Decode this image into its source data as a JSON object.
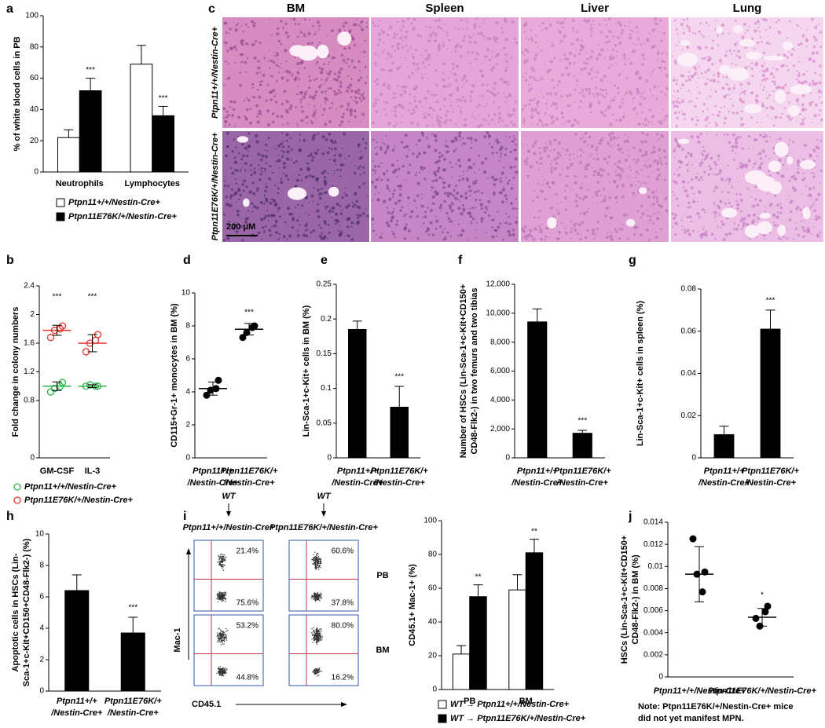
{
  "chart_data": [
    {
      "panel": "a",
      "type": "bar",
      "ylabel": "% of white blood cells in PB",
      "categories": [
        "Neutrophils",
        "Lymphocytes"
      ],
      "series": [
        {
          "name": "Ptpn11+/+/Nestin-Cre+",
          "color": "#ffffff",
          "values": [
            22,
            69
          ],
          "errors": [
            5,
            12
          ]
        },
        {
          "name": "Ptpn11E76K/+/Nestin-Cre+",
          "color": "#000000",
          "values": [
            52,
            36
          ],
          "errors": [
            8,
            6
          ]
        }
      ],
      "annotations": [
        "***",
        "***"
      ],
      "ylim": [
        0,
        100
      ],
      "yticks": [
        0,
        20,
        40,
        60,
        80,
        100
      ]
    },
    {
      "panel": "b",
      "type": "dotplot",
      "ylabel": "Fold change in colony numbers",
      "categories": [
        "GM-CSF",
        "IL-3"
      ],
      "series": [
        {
          "name": "Ptpn11+/+/Nestin-Cre+",
          "color": "#2db34a",
          "values": [
            [
              0.92,
              1.05,
              0.97,
              1.0
            ],
            [
              1.0,
              1.0,
              1.02,
              1.0
            ]
          ],
          "means": [
            1.0,
            1.0
          ],
          "errors": [
            0.06,
            0.02
          ]
        },
        {
          "name": "Ptpn11E76K/+/Nestin-Cre+",
          "color": "#e8332a",
          "values": [
            [
              1.68,
              1.84,
              1.78,
              1.8
            ],
            [
              1.48,
              1.72,
              1.6,
              1.64
            ]
          ],
          "means": [
            1.78,
            1.6
          ],
          "errors": [
            0.07,
            0.12
          ]
        }
      ],
      "annotations": [
        "***",
        "***"
      ],
      "ylim": [
        0,
        2.4
      ],
      "yticks": [
        0,
        0.8,
        1.2,
        1.6,
        2,
        2.4
      ]
    },
    {
      "panel": "d",
      "type": "dotplot",
      "ylabel": "CD115+Gr-1+ monocytes in BM (%)",
      "categories": [
        [
          "Ptpn11+/+",
          "/Nestin-Cre+"
        ],
        [
          "Ptpn11E76K/+",
          "/Nestin-Cre+"
        ]
      ],
      "color": "#000000",
      "groups": [
        {
          "values": [
            3.8,
            4.7,
            4.1,
            4.2
          ],
          "mean": 4.2,
          "error": 0.4
        },
        {
          "values": [
            7.3,
            8.0,
            7.6,
            7.9
          ],
          "mean": 7.8,
          "error": 0.35
        }
      ],
      "annotation": "***",
      "ylim": [
        0,
        10
      ],
      "yticks": [
        0,
        2,
        4,
        6,
        8,
        10
      ]
    },
    {
      "panel": "e",
      "type": "bar",
      "ylabel": "Lin-Sca-1+c-Kit+ cells in BM  (%)",
      "categories": [
        [
          "Ptpn11+/+",
          "/Nestin-Cre+"
        ],
        [
          "Ptpn11E76K/+",
          "/Nestin-Cre+"
        ]
      ],
      "color": "#000000",
      "values": [
        0.185,
        0.073
      ],
      "errors": [
        0.012,
        0.03
      ],
      "annotation": "***",
      "ylim": [
        0,
        0.25
      ],
      "yticks": [
        0,
        0.05,
        0.1,
        0.15,
        0.2,
        0.25
      ]
    },
    {
      "panel": "f",
      "type": "bar",
      "ylabel": [
        "Number of HSCs (Lin-Sca-1+c-Kit+CD150+",
        "CD48-Flk2-) in two femurs and two tibias"
      ],
      "categories": [
        [
          "Ptpn11+/+",
          "/Nestin-Cre+"
        ],
        [
          "Ptpn11E76K/+",
          "/Nestin-Cre+"
        ]
      ],
      "color": "#000000",
      "values": [
        9400,
        1700
      ],
      "errors": [
        900,
        200
      ],
      "annotation": "***",
      "ylim": [
        0,
        12000
      ],
      "yticks": [
        0,
        {
          "value": 2000,
          "label": "2,000"
        },
        {
          "value": 4000,
          "label": "4,000"
        },
        {
          "value": 6000,
          "label": "6,000"
        },
        {
          "value": 8000,
          "label": "8,000"
        },
        {
          "value": 10000,
          "label": "10,000"
        },
        {
          "value": 12000,
          "label": "12,000"
        }
      ]
    },
    {
      "panel": "g",
      "type": "bar",
      "ylabel": "Lin-Sca-1+c-Kit+ cells in spleen (%)",
      "categories": [
        [
          "Ptpn11+/+",
          "/Nestin-Cre+"
        ],
        [
          "Ptpn11E76K/+",
          "/Nestin-Cre+"
        ]
      ],
      "color": "#000000",
      "values": [
        0.011,
        0.061
      ],
      "errors": [
        0.004,
        0.009
      ],
      "annotation": "***",
      "ylim": [
        0,
        0.08
      ],
      "yticks": [
        0,
        0.02,
        0.04,
        0.06,
        0.08
      ]
    },
    {
      "panel": "h",
      "type": "bar",
      "ylabel": [
        "Apoptotic cells in HSCs (Lin-",
        "Sca-1+c-Kit+CD150+CD48-Flk2-) (%)"
      ],
      "categories": [
        [
          "Ptpn11+/+",
          "/Nestin-Cre+"
        ],
        [
          "Ptpn11E76K/+",
          "/Nestin-Cre+"
        ]
      ],
      "color": "#000000",
      "values": [
        6.4,
        3.7
      ],
      "errors": [
        1.0,
        1.0
      ],
      "annotation": "***",
      "ylim": [
        0,
        10
      ],
      "yticks": [
        0,
        2,
        4,
        6,
        8,
        10
      ]
    },
    {
      "type": "bar",
      "ylabel": "CD45.1+ Mac-1+ (%)",
      "categories": [
        "PB",
        "BM"
      ],
      "series": [
        {
          "name": "WT → Ptpn11+/+/Nestin-Cre+",
          "color": "#ffffff",
          "values": [
            21,
            59
          ],
          "errors": [
            5,
            9
          ]
        },
        {
          "name": "WT → Ptpn11E76K/+/Nestin-Cre+",
          "color": "#000000",
          "values": [
            55,
            81
          ],
          "errors": [
            7,
            8
          ]
        }
      ],
      "annotations": [
        "**",
        "**"
      ],
      "ylim": [
        0,
        100
      ],
      "yticks": [
        0,
        20,
        40,
        60,
        80,
        100
      ]
    },
    {
      "panel": "j",
      "type": "dotplot",
      "ylabel": [
        "HSCs (Lin-Sca-1+c-Kit+CD150+",
        "CD48-Flk2-) in BM (%)"
      ],
      "categories": [
        "Ptpn11+/+/Nestin-Cre+",
        "Ptpn11E76K/+/Nestin-Cre+"
      ],
      "color": "#000000",
      "groups": [
        {
          "values": [
            0.0125,
            0.0095,
            0.0093,
            0.0077
          ],
          "mean": 0.0093,
          "error": 0.0025
        },
        {
          "values": [
            0.0053,
            0.0064,
            0.0046,
            0.0059
          ],
          "mean": 0.0054,
          "error": 0.0008
        }
      ],
      "annotation": "*",
      "ylim": [
        0,
        0.014
      ],
      "yticks": [
        0,
        0.002,
        0.004,
        0.006,
        0.008,
        0.01,
        0.012,
        0.014
      ],
      "note": [
        "Note: Ptpn11E76K/+/Nestin-Cre+ mice",
        "did not yet manifest MPN."
      ]
    }
  ],
  "histology": {
    "panel": "c",
    "columns": [
      "BM",
      "Spleen",
      "Liver",
      "Lung"
    ],
    "rows": [
      "Ptpn11+/+/Nestin-Cre+",
      "Ptpn11E76K/+/Nestin-Cre+"
    ],
    "scale_bar": "200 μM"
  },
  "flow": {
    "panel": "i",
    "wt_labels": [
      "WT",
      "WT"
    ],
    "genotypes": [
      "Ptpn11+/+/Nestin-Cre+",
      "Ptpn11E76K/+/Nestin-Cre+"
    ],
    "rows": [
      "PB",
      "BM"
    ],
    "percentages": [
      [
        [
          "21.4%",
          "75.6%"
        ],
        [
          "60.6%",
          "37.8%"
        ]
      ],
      [
        [
          "53.2%",
          "44.8%"
        ],
        [
          "80.0%",
          "16.2%"
        ]
      ]
    ],
    "y_axis": "Mac-1",
    "x_axis": "CD45.1"
  }
}
